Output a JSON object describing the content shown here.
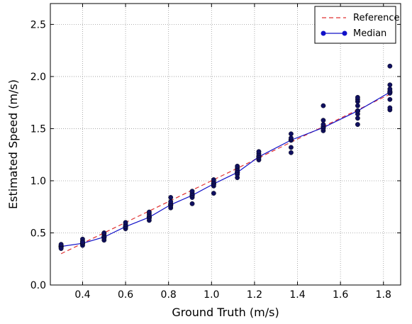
{
  "chart_data": {
    "type": "line",
    "title": "",
    "xlabel": "Ground Truth (m/s)",
    "ylabel": "Estimated Speed (m/s)",
    "xlim": [
      0.25,
      1.88
    ],
    "ylim": [
      0.0,
      2.7
    ],
    "xticks": [
      0.4,
      0.6,
      0.8,
      1.0,
      1.2,
      1.4,
      1.6,
      1.8
    ],
    "xtick_labels": [
      "0.4",
      "0.6",
      "0.8",
      "1.0",
      "1.2",
      "1.4",
      "1.6",
      "1.8"
    ],
    "yticks": [
      0.0,
      0.5,
      1.0,
      1.5,
      2.0,
      2.5
    ],
    "ytick_labels": [
      "0.0",
      "0.5",
      "1.0",
      "1.5",
      "2.0",
      "2.5"
    ],
    "grid": true,
    "legend_position": "top-right",
    "colors": {
      "reference": "#e03030",
      "median": "#1010c8",
      "points": "#101060"
    },
    "series": [
      {
        "name": "Reference",
        "style": "dashed",
        "x": [
          0.3,
          1.83
        ],
        "y": [
          0.3,
          1.83
        ]
      },
      {
        "name": "Median",
        "style": "line-marker",
        "x": [
          0.3,
          0.4,
          0.5,
          0.6,
          0.71,
          0.81,
          0.91,
          1.01,
          1.12,
          1.22,
          1.37,
          1.52,
          1.68,
          1.83
        ],
        "y": [
          0.37,
          0.4,
          0.46,
          0.56,
          0.65,
          0.77,
          0.86,
          0.97,
          1.08,
          1.23,
          1.39,
          1.51,
          1.67,
          1.85
        ]
      }
    ],
    "scatter_points": [
      [
        0.3,
        0.36
      ],
      [
        0.3,
        0.37
      ],
      [
        0.3,
        0.38
      ],
      [
        0.3,
        0.39
      ],
      [
        0.3,
        0.35
      ],
      [
        0.4,
        0.38
      ],
      [
        0.4,
        0.4
      ],
      [
        0.4,
        0.42
      ],
      [
        0.4,
        0.44
      ],
      [
        0.4,
        0.41
      ],
      [
        0.5,
        0.43
      ],
      [
        0.5,
        0.45
      ],
      [
        0.5,
        0.47
      ],
      [
        0.5,
        0.49
      ],
      [
        0.5,
        0.5
      ],
      [
        0.6,
        0.54
      ],
      [
        0.6,
        0.56
      ],
      [
        0.6,
        0.58
      ],
      [
        0.6,
        0.6
      ],
      [
        0.71,
        0.62
      ],
      [
        0.71,
        0.64
      ],
      [
        0.71,
        0.66
      ],
      [
        0.71,
        0.68
      ],
      [
        0.71,
        0.7
      ],
      [
        0.81,
        0.74
      ],
      [
        0.81,
        0.76
      ],
      [
        0.81,
        0.78
      ],
      [
        0.81,
        0.8
      ],
      [
        0.81,
        0.84
      ],
      [
        0.91,
        0.78
      ],
      [
        0.91,
        0.84
      ],
      [
        0.91,
        0.86
      ],
      [
        0.91,
        0.88
      ],
      [
        0.91,
        0.9
      ],
      [
        1.01,
        0.88
      ],
      [
        1.01,
        0.95
      ],
      [
        1.01,
        0.97
      ],
      [
        1.01,
        0.99
      ],
      [
        1.01,
        1.01
      ],
      [
        1.12,
        1.03
      ],
      [
        1.12,
        1.06
      ],
      [
        1.12,
        1.08
      ],
      [
        1.12,
        1.1
      ],
      [
        1.12,
        1.12
      ],
      [
        1.12,
        1.14
      ],
      [
        1.22,
        1.2
      ],
      [
        1.22,
        1.22
      ],
      [
        1.22,
        1.24
      ],
      [
        1.22,
        1.26
      ],
      [
        1.22,
        1.28
      ],
      [
        1.37,
        1.27
      ],
      [
        1.37,
        1.32
      ],
      [
        1.37,
        1.39
      ],
      [
        1.37,
        1.41
      ],
      [
        1.37,
        1.45
      ],
      [
        1.52,
        1.48
      ],
      [
        1.52,
        1.5
      ],
      [
        1.52,
        1.52
      ],
      [
        1.52,
        1.54
      ],
      [
        1.52,
        1.58
      ],
      [
        1.52,
        1.72
      ],
      [
        1.68,
        1.54
      ],
      [
        1.68,
        1.6
      ],
      [
        1.68,
        1.64
      ],
      [
        1.68,
        1.67
      ],
      [
        1.68,
        1.72
      ],
      [
        1.68,
        1.76
      ],
      [
        1.68,
        1.78
      ],
      [
        1.68,
        1.8
      ],
      [
        1.83,
        1.68
      ],
      [
        1.83,
        1.7
      ],
      [
        1.83,
        1.78
      ],
      [
        1.83,
        1.84
      ],
      [
        1.83,
        1.86
      ],
      [
        1.83,
        1.88
      ],
      [
        1.83,
        1.92
      ],
      [
        1.83,
        2.1
      ]
    ]
  }
}
